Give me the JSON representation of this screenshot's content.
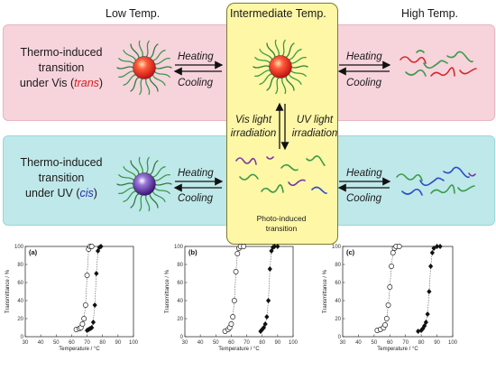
{
  "header": {
    "low": "Low Temp.",
    "intermediate": "Intermediate Temp.",
    "high": "High Temp."
  },
  "rows": {
    "vis": {
      "line1": "Thermo-induced",
      "line2": "transition",
      "line3_prefix": "under Vis (",
      "line3_state": "trans",
      "line3_suffix": ")",
      "state_color": "#d61f1f"
    },
    "uv": {
      "line1": "Thermo-induced",
      "line2": "transition",
      "line3_prefix": "under UV (",
      "line3_state": "cis",
      "line3_suffix": ")",
      "state_color": "#2b2bb0"
    }
  },
  "arrows": {
    "heating": "Heating",
    "cooling": "Cooling",
    "vis_light_1": "Vis light",
    "vis_light_2": "irradiation",
    "uv_light_1": "UV light",
    "uv_light_2": "irradiation"
  },
  "photo_label": {
    "line1": "Photo-induced",
    "line2": "transition"
  },
  "colors": {
    "micelle_core_red": "#e8261e",
    "micelle_core_purple": "#5a2b9a",
    "chain_green": "#3a9a4a",
    "chain_blue": "#2a4fc8",
    "chain_red": "#d42a2a",
    "chain_purple": "#7a3aa0"
  },
  "chart_data": [
    {
      "type": "scatter",
      "panel": "(a)",
      "xlabel": "Temperature / °C",
      "ylabel": "Transmittance / %",
      "xlim": [
        30,
        100
      ],
      "ylim": [
        0,
        100
      ],
      "xticks": [
        30,
        40,
        50,
        60,
        70,
        80,
        90,
        100
      ],
      "yticks": [
        0,
        20,
        40,
        60,
        80,
        100
      ],
      "series": [
        {
          "marker": "open-circle",
          "x": [
            63,
            65,
            66,
            67,
            68,
            69,
            70,
            71,
            72,
            73
          ],
          "y": [
            8,
            9,
            10,
            14,
            20,
            35,
            68,
            97,
            100,
            100
          ]
        },
        {
          "marker": "filled-diamond",
          "x": [
            70,
            71,
            72,
            73,
            74,
            75,
            76,
            77,
            78,
            79
          ],
          "y": [
            7,
            8,
            9,
            10,
            16,
            35,
            70,
            95,
            99,
            100
          ]
        }
      ]
    },
    {
      "type": "scatter",
      "panel": "(b)",
      "xlabel": "Temperature / °C",
      "ylabel": "Transmittance / %",
      "xlim": [
        30,
        100
      ],
      "ylim": [
        0,
        100
      ],
      "xticks": [
        30,
        40,
        50,
        60,
        70,
        80,
        90,
        100
      ],
      "yticks": [
        0,
        20,
        40,
        60,
        80,
        100
      ],
      "series": [
        {
          "marker": "open-circle",
          "x": [
            56,
            58,
            59,
            60,
            61,
            62,
            63,
            64,
            65,
            66,
            68
          ],
          "y": [
            6,
            8,
            10,
            14,
            22,
            40,
            72,
            92,
            98,
            100,
            100
          ]
        },
        {
          "marker": "filled-diamond",
          "x": [
            79,
            80,
            81,
            82,
            83,
            84,
            85,
            86,
            87,
            88,
            90
          ],
          "y": [
            6,
            8,
            10,
            14,
            22,
            40,
            75,
            95,
            99,
            100,
            100
          ]
        }
      ]
    },
    {
      "type": "scatter",
      "panel": "(c)",
      "xlabel": "Temperature / °C",
      "ylabel": "Transmittance / %",
      "xlim": [
        30,
        100
      ],
      "ylim": [
        0,
        100
      ],
      "xticks": [
        30,
        40,
        50,
        60,
        70,
        80,
        90,
        100
      ],
      "yticks": [
        0,
        20,
        40,
        60,
        80,
        100
      ],
      "series": [
        {
          "marker": "open-circle",
          "x": [
            52,
            54,
            56,
            57,
            58,
            59,
            60,
            61,
            62,
            63,
            64,
            66
          ],
          "y": [
            7,
            8,
            10,
            13,
            20,
            35,
            55,
            78,
            93,
            98,
            100,
            100
          ]
        },
        {
          "marker": "filled-diamond",
          "x": [
            78,
            80,
            81,
            82,
            83,
            84,
            85,
            86,
            87,
            88,
            90,
            92
          ],
          "y": [
            6,
            7,
            9,
            12,
            16,
            25,
            50,
            78,
            93,
            98,
            100,
            100
          ]
        }
      ]
    }
  ]
}
